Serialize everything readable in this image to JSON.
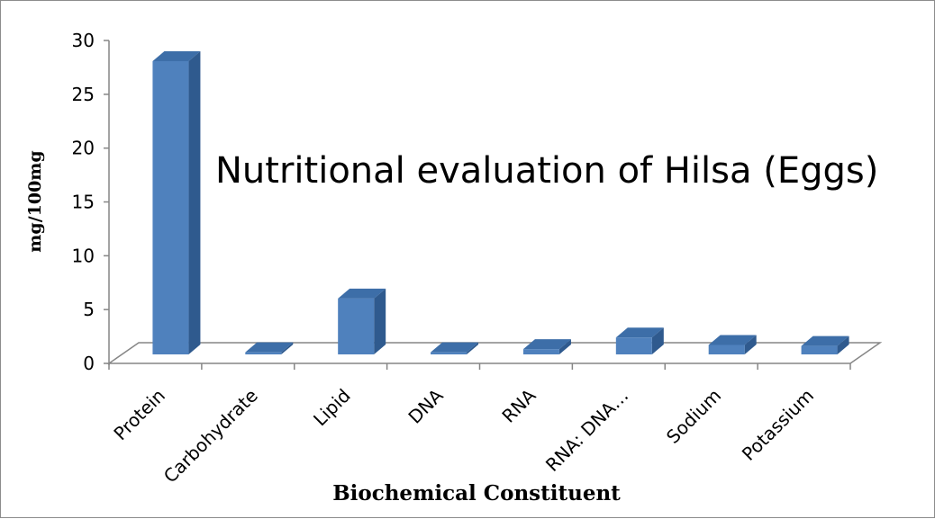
{
  "chart_data": {
    "type": "bar",
    "title": "Nutritional evaluation of Hilsa (Eggs)",
    "xlabel": "Biochemical Constituent",
    "ylabel": "mg/100mg",
    "categories": [
      "Protein",
      "Carbohydrate",
      "Lipid",
      "DNA",
      "RNA",
      "RNA: DNA…",
      "Sodium",
      "Potassium"
    ],
    "values": [
      27.8,
      0.2,
      5.3,
      0.2,
      0.5,
      1.6,
      0.9,
      0.8
    ],
    "yticks": [
      "0",
      "5",
      "10",
      "15",
      "20",
      "25",
      "30"
    ],
    "ylim": [
      0,
      30
    ],
    "grid": false,
    "legend": "none",
    "colors": {
      "bar_front": "#4f81bd",
      "bar_side": "#2f5a8e",
      "bar_top": "#3d6ea8",
      "axis": "#868686"
    }
  }
}
